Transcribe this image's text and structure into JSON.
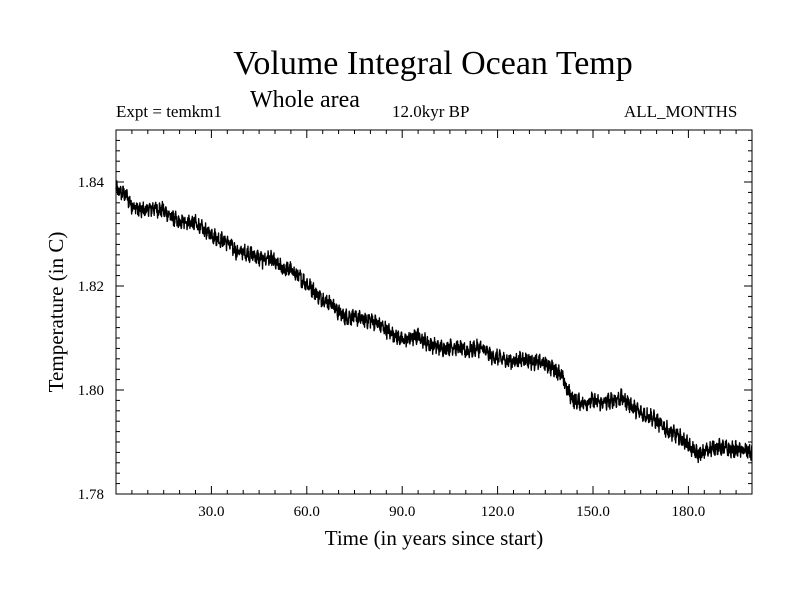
{
  "header": {
    "title": "Volume Integral Ocean Temp",
    "subtitle": "Whole area",
    "left": "Expt = temkm1",
    "center": "12.0kyr BP",
    "right": "ALL_MONTHS"
  },
  "chart_data": {
    "type": "line",
    "title": "Volume Integral Ocean Temp",
    "subtitle": "Whole area",
    "xlabel": "Time (in years since start)",
    "ylabel": "Temperature (in C)",
    "xlim": [
      0,
      200
    ],
    "ylim": [
      1.78,
      1.85
    ],
    "xticks": [
      "30.0",
      "60.0",
      "90.0",
      "120.0",
      "150.0",
      "180.0"
    ],
    "xtick_values": [
      30,
      60,
      90,
      120,
      150,
      180
    ],
    "yticks": [
      "1.78",
      "1.80",
      "1.82",
      "1.84"
    ],
    "ytick_values": [
      1.78,
      1.8,
      1.82,
      1.84
    ],
    "grid": false,
    "noise_amplitude": 0.0012,
    "series": [
      {
        "name": "Volume Integral Ocean Temp",
        "x": [
          0,
          3,
          5,
          8,
          12,
          15,
          18,
          20,
          22,
          25,
          28,
          30,
          32,
          35,
          38,
          40,
          43,
          46,
          48,
          50,
          52,
          55,
          58,
          60,
          63,
          65,
          68,
          70,
          72,
          75,
          78,
          80,
          83,
          85,
          88,
          90,
          93,
          95,
          98,
          100,
          103,
          106,
          110,
          113,
          115,
          118,
          121,
          125,
          128,
          131,
          135,
          138,
          140,
          142,
          144,
          147,
          150,
          153,
          156,
          159,
          162,
          165,
          168,
          171,
          174,
          177,
          180,
          182,
          184,
          186,
          188,
          190,
          193,
          196,
          200
        ],
        "y": [
          1.8385,
          1.8375,
          1.8355,
          1.8345,
          1.835,
          1.8345,
          1.833,
          1.832,
          1.8325,
          1.832,
          1.8305,
          1.83,
          1.829,
          1.8285,
          1.8265,
          1.8265,
          1.826,
          1.825,
          1.8255,
          1.8245,
          1.8235,
          1.823,
          1.8215,
          1.8205,
          1.8185,
          1.8175,
          1.8165,
          1.815,
          1.814,
          1.814,
          1.8135,
          1.8135,
          1.8125,
          1.8115,
          1.8105,
          1.8095,
          1.81,
          1.8105,
          1.809,
          1.8085,
          1.808,
          1.8085,
          1.8075,
          1.808,
          1.808,
          1.8065,
          1.806,
          1.8055,
          1.806,
          1.8055,
          1.805,
          1.804,
          1.803,
          1.8,
          1.798,
          1.7975,
          1.798,
          1.7975,
          1.798,
          1.7985,
          1.797,
          1.7955,
          1.795,
          1.7935,
          1.792,
          1.791,
          1.7895,
          1.788,
          1.7875,
          1.7885,
          1.789,
          1.789,
          1.7885,
          1.7885,
          1.788
        ]
      }
    ]
  }
}
